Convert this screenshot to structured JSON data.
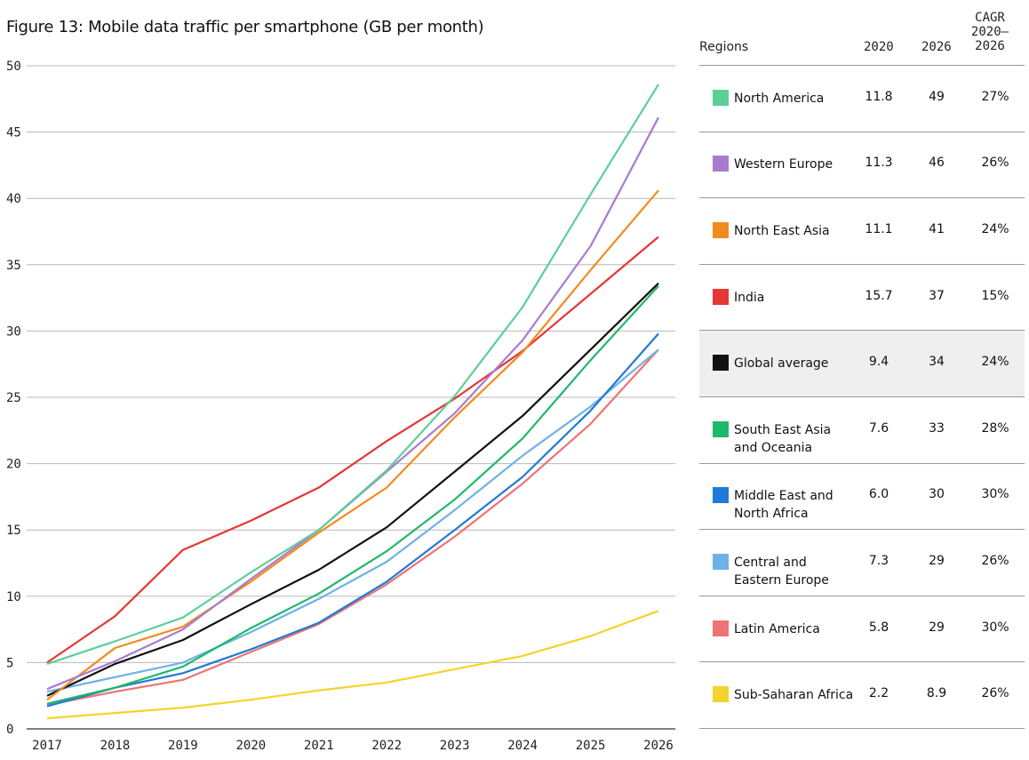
{
  "title": "Figure 13: Mobile data traffic per smartphone (GB per month)",
  "chart_data": {
    "type": "line",
    "x": [
      2017,
      2018,
      2019,
      2020,
      2021,
      2022,
      2023,
      2024,
      2025,
      2026
    ],
    "ylim": [
      0,
      50
    ],
    "yticks": [
      0,
      5,
      10,
      15,
      20,
      25,
      30,
      35,
      40,
      45,
      50
    ],
    "grid": true,
    "series": [
      {
        "name": "North America",
        "color": "#5ccf98",
        "values": [
          4.9,
          6.6,
          8.4,
          11.8,
          15.0,
          19.5,
          25.1,
          31.8,
          40.3,
          48.6
        ]
      },
      {
        "name": "Western Europe",
        "color": "#a87bd1",
        "values": [
          3.0,
          5.1,
          7.5,
          11.3,
          15.0,
          19.4,
          23.8,
          29.3,
          36.4,
          46.1
        ]
      },
      {
        "name": "North East Asia",
        "color": "#f28a1e",
        "values": [
          2.2,
          6.1,
          7.7,
          11.1,
          14.8,
          18.2,
          23.5,
          28.4,
          34.6,
          40.6
        ]
      },
      {
        "name": "India",
        "color": "#e63535",
        "values": [
          5.0,
          8.5,
          13.5,
          15.7,
          18.2,
          21.7,
          24.9,
          28.5,
          32.8,
          37.1
        ]
      },
      {
        "name": "Global average",
        "color": "#111111",
        "values": [
          2.5,
          4.9,
          6.7,
          9.4,
          12.0,
          15.2,
          19.4,
          23.6,
          28.6,
          33.6
        ]
      },
      {
        "name": "South East Asia and Oceania",
        "color": "#1fb86a",
        "values": [
          1.9,
          3.1,
          4.7,
          7.6,
          10.2,
          13.4,
          17.3,
          21.9,
          27.8,
          33.4
        ]
      },
      {
        "name": "Middle East and North Africa",
        "color": "#1f7ad6",
        "values": [
          1.7,
          3.1,
          4.2,
          6.0,
          8.0,
          11.1,
          15.0,
          19.0,
          24.0,
          29.8
        ]
      },
      {
        "name": "Central and Eastern Europe",
        "color": "#6eb1e8",
        "values": [
          2.8,
          3.9,
          5.0,
          7.3,
          9.8,
          12.6,
          16.5,
          20.6,
          24.3,
          28.6
        ]
      },
      {
        "name": "Latin America",
        "color": "#ee7373",
        "values": [
          1.8,
          2.8,
          3.7,
          5.8,
          7.9,
          10.9,
          14.5,
          18.5,
          23.0,
          28.6
        ]
      },
      {
        "name": "Sub-Saharan Africa",
        "color": "#f4d32b",
        "values": [
          0.8,
          1.2,
          1.6,
          2.2,
          2.9,
          3.5,
          4.5,
          5.5,
          7.0,
          8.9
        ]
      }
    ]
  },
  "table": {
    "headers": {
      "region": "Regions",
      "y2020": "2020",
      "y2026": "2026",
      "cagr": [
        "CAGR",
        "2020–",
        "2026"
      ]
    },
    "rows": [
      {
        "region_lines": [
          "North America"
        ],
        "v2020": "11.8",
        "v2026": "49",
        "cagr": "27%",
        "color": "#5ccf98",
        "highlight": false
      },
      {
        "region_lines": [
          "Western Europe"
        ],
        "v2020": "11.3",
        "v2026": "46",
        "cagr": "26%",
        "color": "#a87bd1",
        "highlight": false
      },
      {
        "region_lines": [
          "North East Asia"
        ],
        "v2020": "11.1",
        "v2026": "41",
        "cagr": "24%",
        "color": "#f28a1e",
        "highlight": false
      },
      {
        "region_lines": [
          "India"
        ],
        "v2020": "15.7",
        "v2026": "37",
        "cagr": "15%",
        "color": "#e63535",
        "highlight": false
      },
      {
        "region_lines": [
          "Global average"
        ],
        "v2020": "9.4",
        "v2026": "34",
        "cagr": "24%",
        "color": "#111111",
        "highlight": true
      },
      {
        "region_lines": [
          "South East Asia",
          "and Oceania"
        ],
        "v2020": "7.6",
        "v2026": "33",
        "cagr": "28%",
        "color": "#1fb86a",
        "highlight": false
      },
      {
        "region_lines": [
          "Middle East and",
          "North Africa"
        ],
        "v2020": "6.0",
        "v2026": "30",
        "cagr": "30%",
        "color": "#1f7ad6",
        "highlight": false
      },
      {
        "region_lines": [
          "Central and",
          "Eastern Europe"
        ],
        "v2020": "7.3",
        "v2026": "29",
        "cagr": "26%",
        "color": "#6eb1e8",
        "highlight": false
      },
      {
        "region_lines": [
          "Latin America"
        ],
        "v2020": "5.8",
        "v2026": "29",
        "cagr": "30%",
        "color": "#ee7373",
        "highlight": false
      },
      {
        "region_lines": [
          "Sub-Saharan Africa"
        ],
        "v2020": "2.2",
        "v2026": "8.9",
        "cagr": "26%",
        "color": "#f4d32b",
        "highlight": false
      }
    ]
  }
}
